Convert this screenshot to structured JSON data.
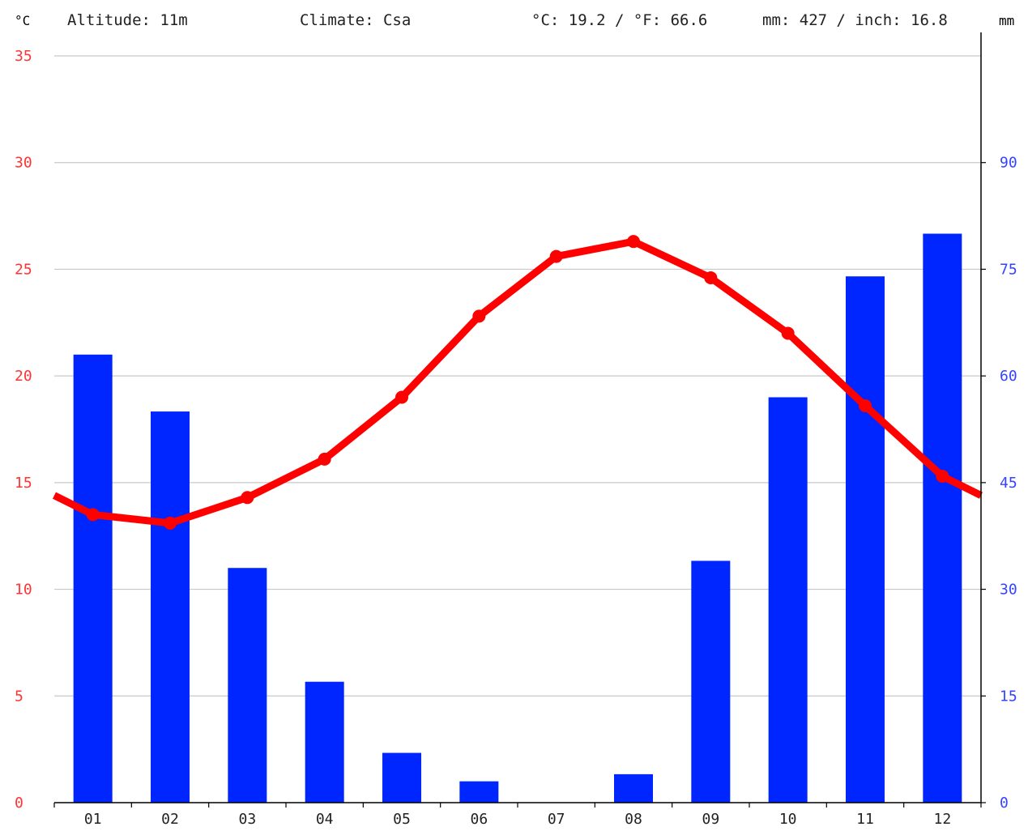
{
  "header": {
    "altitude": "Altitude: 11m",
    "climate": "Climate: Csa",
    "temperature_avg": "°C: 19.2 / °F: 66.6",
    "precipitation_total": "mm: 427 / inch: 16.8"
  },
  "colors": {
    "temperature": "#ff0000",
    "temperature_axis": "#ff3333",
    "precipitation": "#0026ff",
    "precipitation_axis": "#3344ff",
    "grid": "#c8c8c8",
    "axis": "#000000"
  },
  "chart_data": {
    "type": "bar",
    "categories": [
      "01",
      "02",
      "03",
      "04",
      "05",
      "06",
      "07",
      "08",
      "09",
      "10",
      "11",
      "12"
    ],
    "series": [
      {
        "type": "bar",
        "axis": "right",
        "values": [
          63,
          55,
          33,
          17,
          7,
          3,
          0,
          4,
          34,
          57,
          74,
          80
        ]
      },
      {
        "type": "line",
        "axis": "left",
        "values": [
          13.5,
          13.1,
          14.3,
          16.1,
          19.0,
          22.8,
          25.6,
          26.3,
          24.6,
          22.0,
          18.6,
          15.3
        ],
        "extends_to_edges": true
      }
    ],
    "y_left": {
      "label": "°C",
      "range": [
        0,
        35
      ],
      "ticks": [
        "0",
        "5",
        "10",
        "15",
        "20",
        "25",
        "30",
        "35"
      ]
    },
    "y_right": {
      "label": "mm",
      "range": [
        0,
        105
      ],
      "ticks": [
        "0",
        "15",
        "30",
        "45",
        "60",
        "75",
        "90"
      ]
    },
    "grid": true,
    "legend": "none"
  }
}
